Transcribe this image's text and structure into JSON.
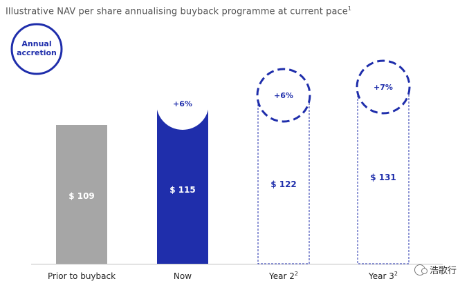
{
  "chart_data": {
    "type": "bar",
    "title": "Illustrative NAV per share annualising buyback programme at current pace",
    "title_sup": "1",
    "categories": [
      "Prior to buyback",
      "Now",
      "Year 2",
      "Year 3"
    ],
    "category_sups": [
      "",
      "",
      "2",
      "2"
    ],
    "values": [
      109,
      115,
      122,
      131
    ],
    "value_labels": [
      "$ 109",
      "$ 115",
      "$ 122",
      "$ 131"
    ],
    "accretion_labels": [
      "",
      "+6%",
      "+6%",
      "+7%"
    ],
    "bar_styles": [
      "solid-grey",
      "solid-blue",
      "dashed-outline",
      "dashed-outline"
    ],
    "legend": {
      "label_line1": "Annual",
      "label_line2": "accretion",
      "placement": "top-left"
    },
    "ylim": [
      0,
      140
    ],
    "colors": {
      "grey": "#a6a6a6",
      "blue": "#1f2eab",
      "text_dark": "#222222"
    }
  },
  "watermark": {
    "icon": "wechat-icon",
    "text": "浩歌行"
  }
}
